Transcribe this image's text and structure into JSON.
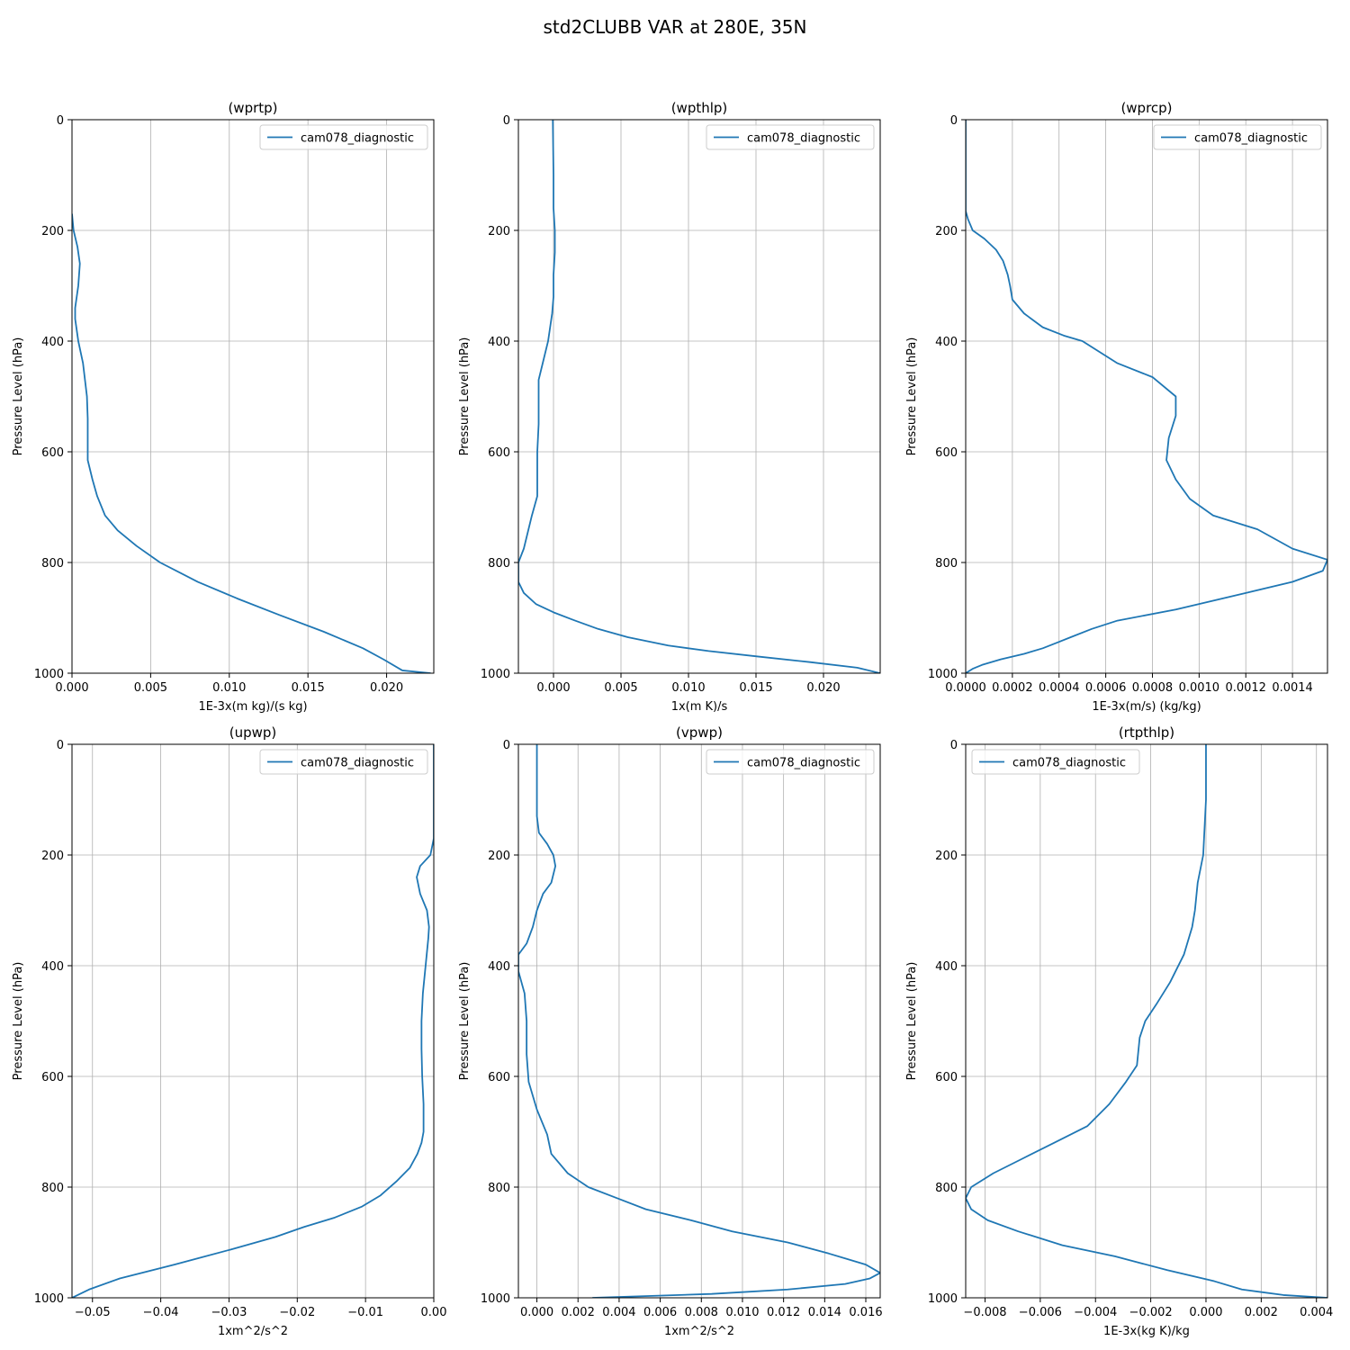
{
  "figure": {
    "title": "std2CLUBB VAR at 280E, 35N"
  },
  "chart_data": [
    {
      "type": "line",
      "title": "(wprtp)",
      "xlabel": "1E-3x(m kg)/(s kg)",
      "ylabel": "Pressure Level (hPa)",
      "xlim": [
        0,
        0.023
      ],
      "ylim": [
        1000,
        0
      ],
      "y_inverted": true,
      "xticks": [
        0,
        0.005,
        0.01,
        0.015,
        0.02
      ],
      "xtick_labels": [
        "0.000",
        "0.005",
        "0.010",
        "0.015",
        "0.020"
      ],
      "yticks": [
        0,
        200,
        400,
        600,
        800,
        1000
      ],
      "ytick_labels": [
        "0",
        "200",
        "400",
        "600",
        "800",
        "1000"
      ],
      "grid": true,
      "legend": {
        "location": "upper right",
        "entries": [
          "cam078_diagnostic"
        ]
      },
      "color": "#1f77b4",
      "series": [
        {
          "name": "cam078_diagnostic",
          "x": [
            0.0,
            0.0001,
            0.00035,
            0.0005,
            0.0004,
            0.0002,
            0.0002,
            0.0004,
            0.0007,
            0.00095,
            0.001,
            0.001,
            0.001,
            0.0013,
            0.0016,
            0.0021,
            0.0029,
            0.0041,
            0.0056,
            0.008,
            0.0105,
            0.0132,
            0.016,
            0.0185,
            0.0198,
            0.021,
            0.0228
          ],
          "y": [
            170,
            200,
            230,
            260,
            300,
            340,
            360,
            400,
            440,
            500,
            540,
            580,
            615,
            650,
            680,
            715,
            742,
            770,
            800,
            835,
            865,
            895,
            925,
            955,
            975,
            995,
            1000
          ]
        }
      ]
    },
    {
      "type": "line",
      "title": "(wpthlp)",
      "xlabel": "1x(m K)/s",
      "ylabel": "Pressure Level (hPa)",
      "xlim": [
        -0.0026,
        0.0242
      ],
      "ylim": [
        1000,
        0
      ],
      "y_inverted": true,
      "xticks": [
        0,
        0.005,
        0.01,
        0.015,
        0.02
      ],
      "xtick_labels": [
        "0.000",
        "0.005",
        "0.010",
        "0.015",
        "0.020"
      ],
      "yticks": [
        0,
        200,
        400,
        600,
        800,
        1000
      ],
      "ytick_labels": [
        "0",
        "200",
        "400",
        "600",
        "800",
        "1000"
      ],
      "grid": true,
      "legend": {
        "location": "upper right",
        "entries": [
          "cam078_diagnostic"
        ]
      },
      "color": "#1f77b4",
      "series": [
        {
          "name": "cam078_diagnostic",
          "x": [
            -5e-05,
            0.0,
            0.0,
            0.0001,
            0.0001,
            0.0,
            0.0,
            -0.0001,
            -0.0004,
            -0.0008,
            -0.0011,
            -0.0011,
            -0.0011,
            -0.0012,
            -0.0012,
            -0.0016,
            -0.0022,
            -0.0026,
            -0.0026,
            -0.0022,
            -0.0013,
            0.0,
            0.0016,
            0.0033,
            0.0055,
            0.0085,
            0.0115,
            0.0152,
            0.019,
            0.0225,
            0.0242
          ],
          "y": [
            0,
            100,
            160,
            200,
            240,
            280,
            320,
            350,
            400,
            440,
            470,
            500,
            550,
            600,
            680,
            715,
            775,
            800,
            835,
            855,
            875,
            890,
            905,
            920,
            935,
            950,
            960,
            970,
            980,
            990,
            1000
          ]
        }
      ]
    },
    {
      "type": "line",
      "title": "(wprcp)",
      "xlabel": "1E-3x(m/s) (kg/kg)",
      "ylabel": "Pressure Level (hPa)",
      "xlim": [
        0,
        0.00155
      ],
      "ylim": [
        1000,
        0
      ],
      "y_inverted": true,
      "xticks": [
        0,
        0.0002,
        0.0004,
        0.0006,
        0.0008,
        0.001,
        0.0012,
        0.0014
      ],
      "xtick_labels": [
        "0.0000",
        "0.0002",
        "0.0004",
        "0.0006",
        "0.0008",
        "0.0010",
        "0.0012",
        "0.0014"
      ],
      "yticks": [
        0,
        200,
        400,
        600,
        800,
        1000
      ],
      "ytick_labels": [
        "0",
        "200",
        "400",
        "600",
        "800",
        "1000"
      ],
      "grid": true,
      "legend": {
        "location": "upper right",
        "entries": [
          "cam078_diagnostic"
        ]
      },
      "color": "#1f77b4",
      "series": [
        {
          "name": "cam078_diagnostic",
          "x": [
            0.0,
            0.0,
            0.0,
            1e-05,
            3e-05,
            8e-05,
            0.00013,
            0.00016,
            0.00018,
            0.00019,
            0.0002,
            0.00025,
            0.00033,
            0.00042,
            0.0005,
            0.00065,
            0.0008,
            0.0009,
            0.0009,
            0.00087,
            0.00086,
            0.0009,
            0.00096,
            0.00106,
            0.00125,
            0.0014,
            0.00155,
            0.00153,
            0.0014,
            0.0012,
            0.0009,
            0.00065,
            0.00054,
            0.00045,
            0.00039,
            0.00033,
            0.00025,
            0.00015,
            7e-05,
            3e-05,
            0.0
          ],
          "y": [
            0,
            100,
            165,
            180,
            200,
            215,
            235,
            255,
            280,
            300,
            325,
            350,
            375,
            390,
            400,
            440,
            465,
            500,
            535,
            575,
            615,
            650,
            685,
            715,
            740,
            775,
            795,
            815,
            835,
            855,
            885,
            905,
            920,
            935,
            945,
            955,
            965,
            975,
            985,
            992,
            1000
          ]
        }
      ]
    },
    {
      "type": "line",
      "title": "(upwp)",
      "xlabel": "1xm^2/s^2",
      "ylabel": "Pressure Level (hPa)",
      "xlim": [
        -0.053,
        0.0
      ],
      "ylim": [
        1000,
        0
      ],
      "y_inverted": true,
      "xticks": [
        -0.05,
        -0.04,
        -0.03,
        -0.02,
        -0.01,
        0.0
      ],
      "xtick_labels": [
        "−0.05",
        "−0.04",
        "−0.03",
        "−0.02",
        "−0.01",
        "0.00"
      ],
      "yticks": [
        0,
        200,
        400,
        600,
        800,
        1000
      ],
      "ytick_labels": [
        "0",
        "200",
        "400",
        "600",
        "800",
        "1000"
      ],
      "grid": true,
      "legend": {
        "location": "upper right",
        "entries": [
          "cam078_diagnostic"
        ]
      },
      "color": "#1f77b4",
      "series": [
        {
          "name": "cam078_diagnostic",
          "x": [
            0.0,
            0.0,
            -0.0005,
            -0.002,
            -0.0025,
            -0.002,
            -0.001,
            -0.0007,
            -0.0008,
            -0.0012,
            -0.0016,
            -0.0018,
            -0.0018,
            -0.0017,
            -0.0015,
            -0.0015,
            -0.0018,
            -0.0024,
            -0.0035,
            -0.0055,
            -0.0078,
            -0.0105,
            -0.0145,
            -0.019,
            -0.0232,
            -0.0295,
            -0.038,
            -0.046,
            -0.0505,
            -0.053
          ],
          "y": [
            0,
            170,
            200,
            220,
            240,
            270,
            300,
            330,
            350,
            400,
            450,
            500,
            550,
            600,
            650,
            700,
            720,
            740,
            765,
            790,
            815,
            835,
            855,
            872,
            890,
            912,
            940,
            965,
            985,
            1000
          ]
        }
      ]
    },
    {
      "type": "line",
      "title": "(vpwp)",
      "xlabel": "1xm^2/s^2",
      "ylabel": "Pressure Level (hPa)",
      "xlim": [
        -0.0009,
        0.0167
      ],
      "ylim": [
        1000,
        0
      ],
      "y_inverted": true,
      "xticks": [
        0,
        0.002,
        0.004,
        0.006,
        0.008,
        0.01,
        0.012,
        0.014,
        0.016
      ],
      "xtick_labels": [
        "0.000",
        "0.002",
        "0.004",
        "0.006",
        "0.008",
        "0.010",
        "0.012",
        "0.014",
        "0.016"
      ],
      "yticks": [
        0,
        200,
        400,
        600,
        800,
        1000
      ],
      "ytick_labels": [
        "0",
        "200",
        "400",
        "600",
        "800",
        "1000"
      ],
      "grid": true,
      "legend": {
        "location": "upper right",
        "entries": [
          "cam078_diagnostic"
        ]
      },
      "color": "#1f77b4",
      "series": [
        {
          "name": "cam078_diagnostic",
          "x": [
            0.0,
            0.0,
            0.0001,
            0.0005,
            0.0008,
            0.0009,
            0.0007,
            0.0003,
            0.0,
            -0.0002,
            -0.0005,
            -0.0009,
            -0.0009,
            -0.0006,
            -0.0005,
            -0.0005,
            -0.0004,
            0.0,
            0.0005,
            0.0007,
            0.0015,
            0.0025,
            0.0039,
            0.0053,
            0.0075,
            0.0095,
            0.0122,
            0.0142,
            0.016,
            0.0167,
            0.0162,
            0.015,
            0.0122,
            0.0085,
            0.0027
          ],
          "y": [
            0,
            130,
            160,
            180,
            200,
            220,
            250,
            270,
            300,
            330,
            360,
            380,
            410,
            450,
            500,
            560,
            610,
            660,
            705,
            740,
            775,
            800,
            820,
            840,
            860,
            880,
            900,
            920,
            940,
            955,
            965,
            975,
            985,
            993,
            1000
          ]
        }
      ]
    },
    {
      "type": "line",
      "title": "(rtpthlp)",
      "xlabel": "1E-3x(kg K)/kg",
      "ylabel": "Pressure Level (hPa)",
      "xlim": [
        -0.0087,
        0.0044
      ],
      "ylim": [
        1000,
        0
      ],
      "y_inverted": true,
      "xticks": [
        -0.008,
        -0.006,
        -0.004,
        -0.002,
        0.0,
        0.002,
        0.004
      ],
      "xtick_labels": [
        "−0.008",
        "−0.006",
        "−0.004",
        "−0.002",
        "0.000",
        "0.002",
        "0.004"
      ],
      "yticks": [
        0,
        200,
        400,
        600,
        800,
        1000
      ],
      "ytick_labels": [
        "0",
        "200",
        "400",
        "600",
        "800",
        "1000"
      ],
      "grid": true,
      "legend": {
        "location": "upper left",
        "entries": [
          "cam078_diagnostic"
        ]
      },
      "color": "#1f77b4",
      "series": [
        {
          "name": "cam078_diagnostic",
          "x": [
            0.0,
            0.0,
            -0.0001,
            -0.0003,
            -0.0004,
            -0.0005,
            -0.0008,
            -0.0013,
            -0.0018,
            -0.0022,
            -0.0024,
            -0.0025,
            -0.0029,
            -0.0035,
            -0.0043,
            -0.0055,
            -0.0067,
            -0.0077,
            -0.0085,
            -0.0087,
            -0.0085,
            -0.0079,
            -0.0068,
            -0.0052,
            -0.0033,
            -0.0014,
            0.0003,
            0.0013,
            0.0028,
            0.0044
          ],
          "y": [
            0,
            100,
            200,
            250,
            300,
            330,
            380,
            430,
            470,
            500,
            530,
            580,
            610,
            650,
            690,
            720,
            750,
            775,
            800,
            820,
            840,
            860,
            880,
            905,
            925,
            950,
            970,
            985,
            995,
            1000
          ]
        }
      ]
    }
  ]
}
